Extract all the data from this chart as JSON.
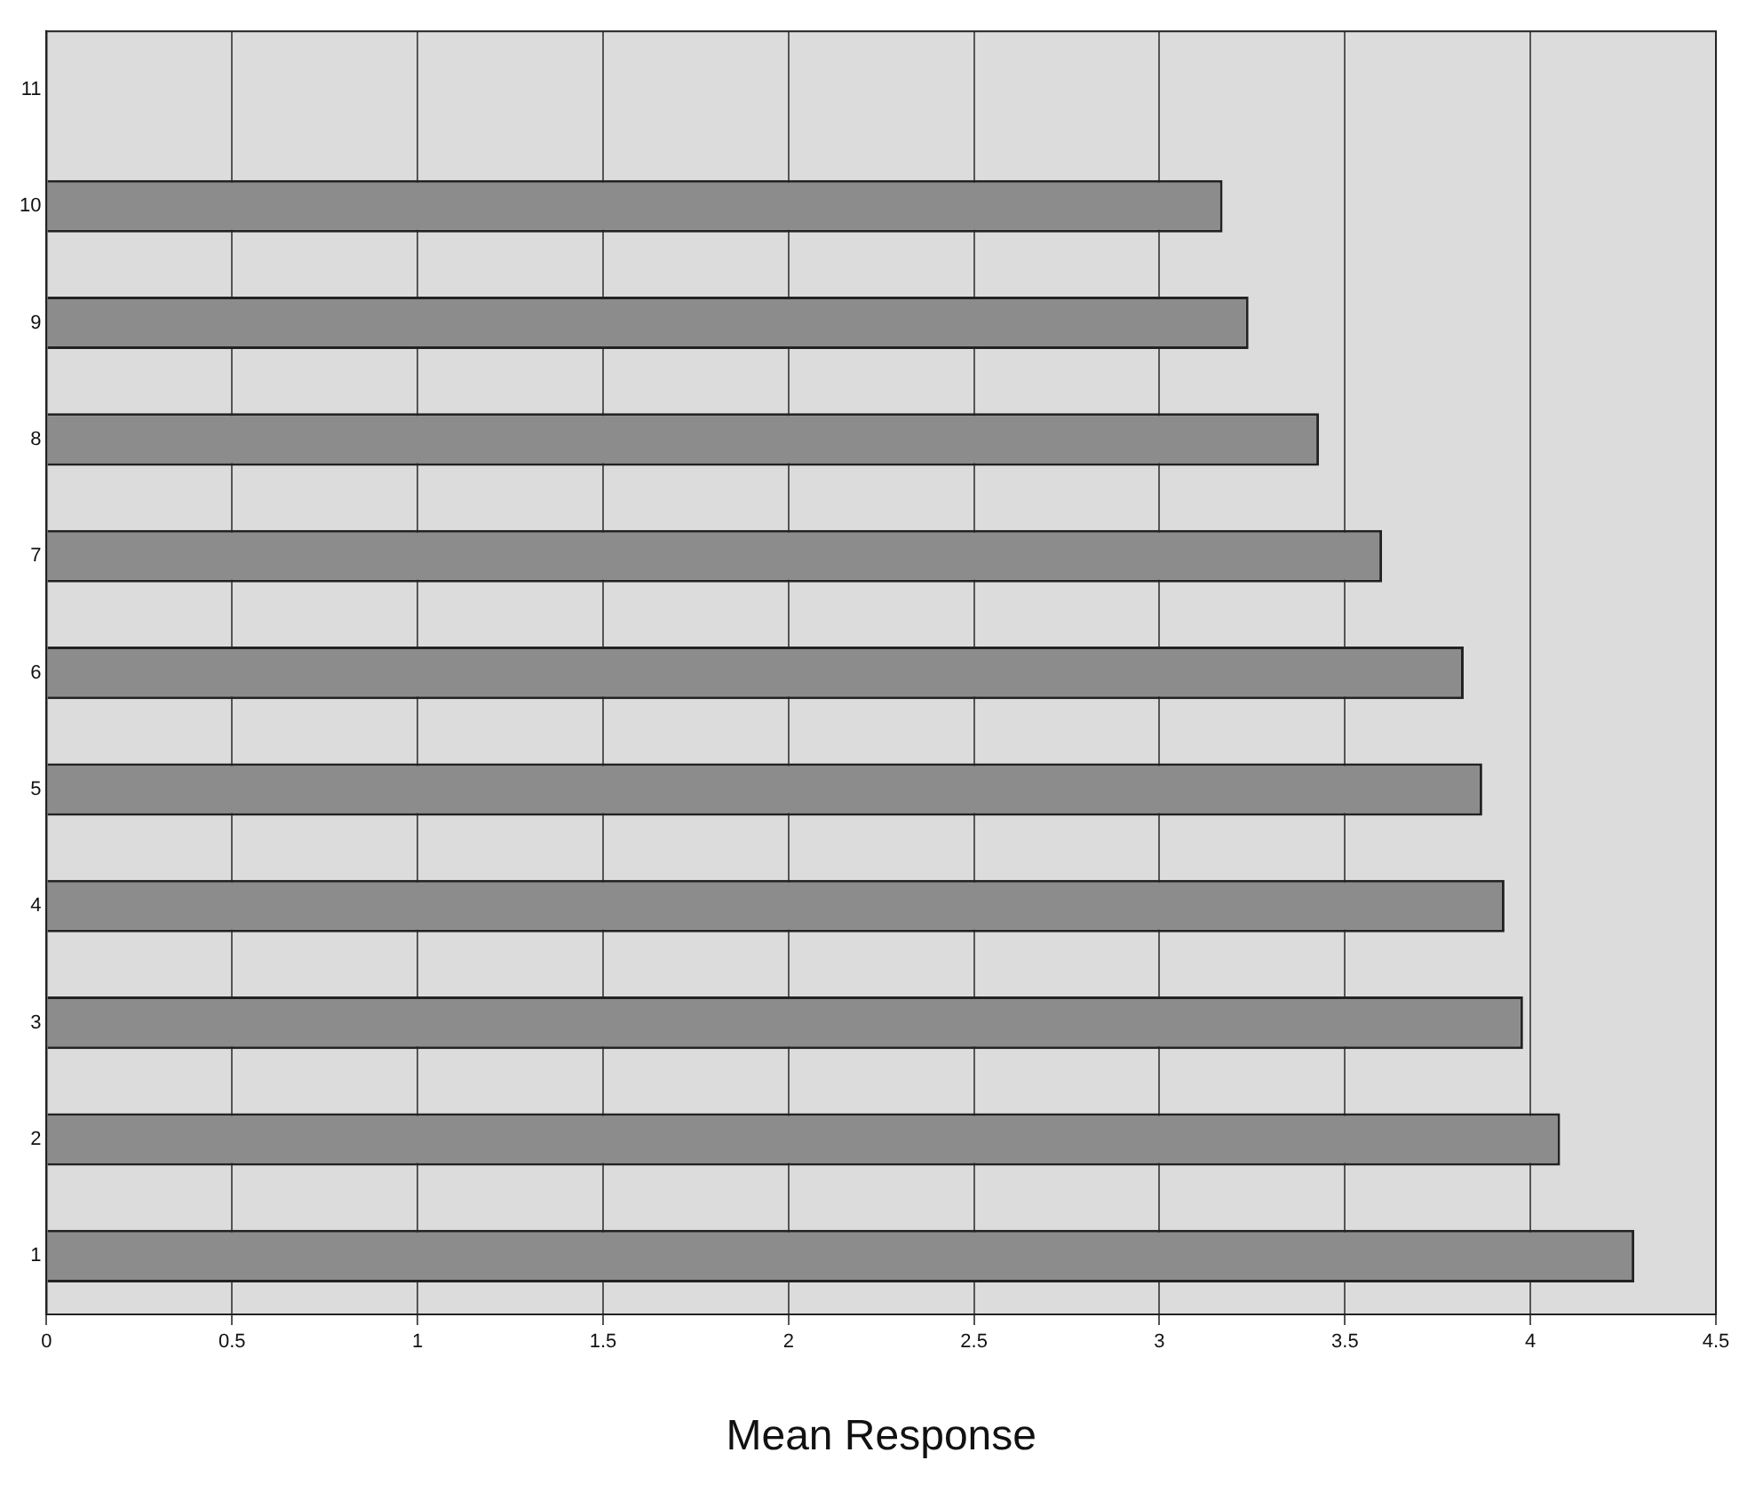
{
  "chart_data": {
    "type": "bar",
    "orientation": "horizontal",
    "xlabel": "Mean Response",
    "categories": [
      "11",
      "10",
      "9",
      "8",
      "7",
      "6",
      "5",
      "4",
      "3",
      "2",
      "1"
    ],
    "values": [
      null,
      3.17,
      3.24,
      3.43,
      3.6,
      3.82,
      3.87,
      3.93,
      3.98,
      4.08,
      4.28
    ],
    "color": "#8c8c8c",
    "xlim": [
      0,
      4.5
    ],
    "xticks": [
      0,
      0.5,
      1,
      1.5,
      2,
      2.5,
      3,
      3.5,
      4,
      4.5
    ],
    "grid": "x"
  }
}
